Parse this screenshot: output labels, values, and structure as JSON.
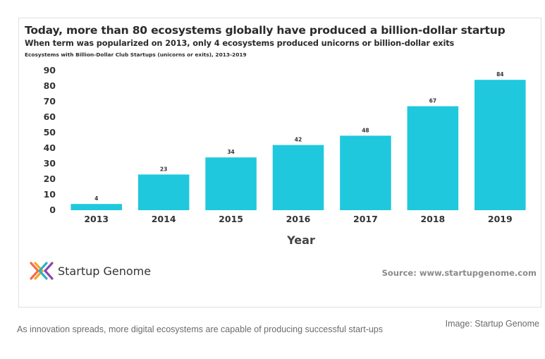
{
  "chart_data": {
    "type": "bar",
    "title": "Today, more than 80 ecosystems globally have produced a billion-dollar startup",
    "subtitle": "When term was popularized on 2013, only 4 ecosystems produced unicorns or billion-dollar exits",
    "note": "Ecosystems with Billion-Dollar Club Startups (unicorns or exits), 2013-2019",
    "categories": [
      "2013",
      "2014",
      "2015",
      "2016",
      "2017",
      "2018",
      "2019"
    ],
    "values": [
      4,
      23,
      34,
      42,
      48,
      67,
      84
    ],
    "xlabel": "Year",
    "ylabel": "",
    "ylim": [
      0,
      90
    ],
    "yticks": [
      0,
      10,
      20,
      30,
      40,
      50,
      60,
      70,
      80,
      90
    ],
    "grid": false,
    "bar_color": "#1fc8dc"
  },
  "logo": {
    "name": "Startup Genome"
  },
  "source": "Source: www.startupgenome.com",
  "caption": "As innovation spreads, more digital ecosystems are capable of producing successful start-ups",
  "credit": "Image: Startup Genome"
}
